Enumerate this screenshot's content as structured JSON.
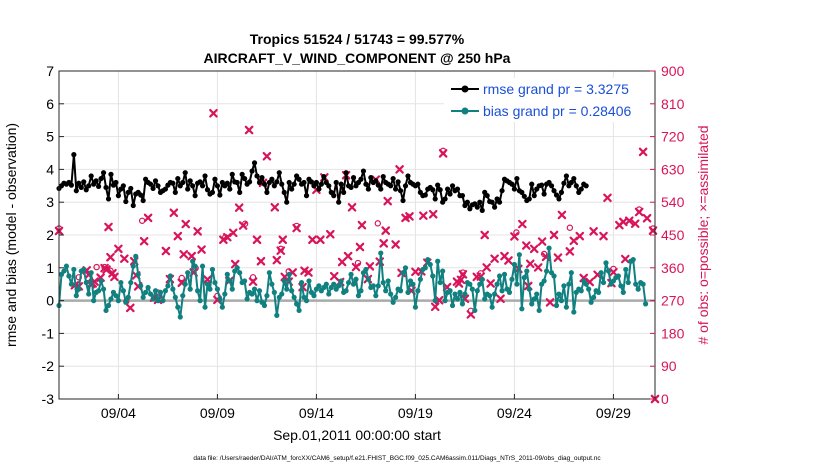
{
  "chart_data": {
    "type": "line",
    "title_line1": "Tropics 51524 / 51743 = 99.577%",
    "title_line2": "AIRCRAFT_V_WIND_COMPONENT @ 250 hPa",
    "xlabel": "Sep.01,2011 00:00:00 start",
    "ylabel_left": "rmse and bias (model - observation)",
    "ylabel_right": "# of obs: o=possible; ×=assimilated",
    "footnote": "data file: /Users/raeder/DAI/ATM_forcXX/CAM6_setup/f.e21.FHIST_BGC.f09_025.CAM6assim.011/Diags_NTrS_2011-09/obs_diag_output.nc",
    "xlim": [
      1.0,
      31.1
    ],
    "ylim_left": [
      -3,
      7
    ],
    "ylim_right": [
      0,
      900
    ],
    "yticks_left": [
      -3,
      -2,
      -1,
      0,
      1,
      2,
      3,
      4,
      5,
      6,
      7
    ],
    "yticks_right": [
      0,
      90,
      180,
      270,
      360,
      450,
      540,
      630,
      720,
      810,
      900
    ],
    "xticks": [
      {
        "value": 4,
        "label": "09/04"
      },
      {
        "value": 9,
        "label": "09/09"
      },
      {
        "value": 14,
        "label": "09/14"
      },
      {
        "value": 19,
        "label": "09/19"
      },
      {
        "value": 24,
        "label": "09/24"
      },
      {
        "value": 29,
        "label": "09/29"
      }
    ],
    "grid": true,
    "legend_position": "top-right",
    "colors": {
      "rmse": "#000000",
      "bias": "#118080",
      "obs": "#d8145a",
      "zero_line": "#aaaaaa",
      "grid": "#e4e4e4",
      "legend_text": "#1a4fd6"
    },
    "series": [
      {
        "name": "rmse grand pr = 3.3275",
        "role": "rmse",
        "axis": "left",
        "x_start": 1.0,
        "x_step": 0.125,
        "values": [
          3.42,
          3.5,
          3.58,
          3.55,
          3.6,
          3.52,
          4.45,
          3.35,
          3.58,
          3.45,
          3.62,
          3.38,
          3.5,
          3.8,
          3.55,
          3.65,
          3.48,
          3.72,
          3.9,
          3.45,
          3.1,
          3.85,
          3.52,
          3.6,
          3.2,
          3.4,
          3.5,
          3.02,
          3.3,
          3.42,
          2.9,
          3.25,
          3.3,
          3.22,
          3.05,
          3.7,
          3.6,
          3.55,
          3.42,
          3.65,
          3.5,
          3.3,
          3.35,
          3.4,
          3.52,
          3.6,
          3.58,
          3.3,
          3.72,
          3.5,
          3.6,
          3.9,
          3.4,
          3.65,
          3.5,
          3.2,
          3.58,
          3.62,
          3.5,
          3.8,
          3.38,
          3.25,
          3.3,
          3.7,
          3.5,
          3.22,
          3.6,
          3.5,
          3.58,
          3.4,
          3.85,
          3.62,
          3.6,
          3.3,
          3.85,
          3.72,
          3.55,
          3.62,
          3.95,
          4.2,
          3.8,
          3.6,
          3.75,
          3.55,
          3.3,
          3.6,
          3.7,
          3.5,
          3.62,
          3.9,
          3.55,
          3.3,
          3.0,
          3.6,
          3.4,
          3.55,
          3.8,
          3.7,
          3.55,
          3.6,
          3.2,
          3.7,
          3.62,
          3.5,
          3.6,
          3.4,
          3.55,
          3.78,
          3.6,
          3.5,
          3.3,
          3.2,
          3.6,
          3.0,
          3.55,
          3.3,
          3.9,
          3.5,
          3.45,
          3.75,
          3.5,
          3.6,
          3.7,
          3.95,
          3.55,
          3.4,
          3.75,
          3.6,
          3.65,
          3.52,
          3.4,
          3.78,
          3.6,
          3.55,
          3.5,
          3.72,
          3.4,
          3.62,
          3.35,
          3.05,
          3.5,
          3.8,
          3.6,
          3.55,
          3.5,
          3.55,
          3.3,
          3.2,
          3.22,
          3.4,
          3.45,
          3.38,
          3.1,
          3.52,
          3.38,
          3.0,
          3.1,
          3.4,
          3.25,
          3.5,
          3.35,
          3.4,
          3.2,
          3.2,
          2.9,
          3.0,
          2.8,
          2.92,
          2.95,
          2.85,
          3.0,
          2.75,
          3.3,
          3.2,
          3.02,
          3.0,
          2.85,
          3.1,
          3.0,
          3.35,
          3.7,
          3.65,
          3.6,
          3.55,
          3.4,
          3.72,
          3.35,
          3.3,
          3.18,
          3.05,
          3.1,
          3.55,
          3.2,
          3.4,
          3.5,
          3.52,
          3.25,
          3.55,
          3.6,
          3.5,
          3.35,
          3.22,
          3.1,
          3.3,
          3.58,
          3.8,
          3.5,
          3.6,
          3.72,
          3.5,
          3.3,
          3.4,
          3.55,
          3.5
        ]
      },
      {
        "name": "bias grand pr = 0.28406",
        "role": "bias",
        "axis": "left",
        "x_start": 1.0,
        "x_step": 0.125,
        "values": [
          -0.15,
          0.8,
          0.9,
          1.05,
          0.75,
          0.5,
          0.95,
          0.15,
          0.35,
          0.9,
          0.95,
          0.55,
          0.2,
          0.85,
          0.0,
          0.25,
          0.3,
          0.6,
          0.35,
          -0.3,
          -0.15,
          0.05,
          0.25,
          0.15,
          0.0,
          0.55,
          0.3,
          -0.05,
          0.1,
          0.55,
          1.05,
          1.35,
          0.8,
          0.45,
          0.1,
          0.25,
          0.4,
          0.2,
          0.05,
          0.3,
          0.0,
          0.25,
          0.0,
          0.3,
          0.45,
          0.75,
          0.35,
          0.1,
          -0.2,
          -0.5,
          0.15,
          0.5,
          0.85,
          0.35,
          1.2,
          1.05,
          0.3,
          0.0,
          1.05,
          -0.2,
          0.5,
          0.35,
          0.95,
          0.55,
          0.35,
          0.05,
          -0.2,
          0.2,
          0.8,
          0.6,
          0.35,
          0.9,
          1.0,
          0.85,
          0.55,
          0.6,
          0.05,
          0.25,
          0.2,
          0.35,
          0.0,
          0.3,
          -0.05,
          -0.15,
          0.15,
          0.85,
          0.5,
          0.25,
          -0.45,
          0.1,
          0.2,
          0.6,
          0.35,
          0.8,
          0.3,
          0.1,
          -0.1,
          -0.3,
          0.55,
          0.1,
          0.0,
          0.6,
          0.25,
          0.15,
          0.35,
          0.45,
          0.3,
          0.4,
          0.5,
          0.2,
          0.4,
          0.5,
          0.35,
          0.45,
          0.6,
          0.25,
          0.3,
          0.55,
          0.8,
          0.5,
          0.65,
          0.15,
          0.3,
          0.85,
          0.95,
          0.65,
          0.4,
          0.45,
          0.15,
          0.45,
          1.45,
          0.55,
          0.3,
          0.6,
          0.2,
          -0.05,
          0.1,
          0.35,
          0.3,
          0.85,
          1.0,
          0.25,
          0.6,
          0.5,
          -0.2,
          0.3,
          0.65,
          0.95,
          1.0,
          1.25,
          1.1,
          0.75,
          0.0,
          1.2,
          0.55,
          0.9,
          0.0,
          0.25,
          0.3,
          -0.15,
          0.2,
          0.05,
          0.25,
          -0.1,
          0.2,
          0.55,
          0.5,
          0.35,
          -0.3,
          0.3,
          0.5,
          0.65,
          0.05,
          0.2,
          0.15,
          -0.2,
          0.2,
          0.5,
          0.75,
          0.3,
          0.8,
          0.35,
          0.25,
          0.65,
          1.1,
          0.5,
          1.4,
          -0.25,
          0.7,
          0.9,
          0.35,
          -0.1,
          0.05,
          0.2,
          -0.3,
          0.5,
          0.6,
          0.9,
          1.6,
          0.85,
          0.75,
          -0.15,
          0.2,
          0.0,
          0.45,
          -0.2,
          0.5,
          0.85,
          -0.35,
          0.25,
          0.35,
          0.3,
          0.6,
          0.5,
          0.35,
          -0.05,
          0.1,
          0.3,
          0.25,
          0.85,
          0.55,
          1.15,
          0.9,
          0.5,
          0.6,
          0.7,
          0.75,
          0.45,
          0.25,
          0.95,
          0.55,
          1.2,
          1.25,
          0.5,
          0.35,
          0.55,
          0.5,
          -0.1
        ]
      }
    ],
    "obs_assimilated_markers": [
      [
        1.0,
        461
      ],
      [
        1.8,
        312
      ],
      [
        2.0,
        309
      ],
      [
        2.4,
        353
      ],
      [
        2.5,
        341
      ],
      [
        2.6,
        315
      ],
      [
        2.7,
        317
      ],
      [
        2.8,
        322
      ],
      [
        3.1,
        333
      ],
      [
        3.3,
        359
      ],
      [
        3.4,
        355
      ],
      [
        3.5,
        472
      ],
      [
        3.6,
        389
      ],
      [
        3.7,
        345
      ],
      [
        3.8,
        335
      ],
      [
        4.0,
        412
      ],
      [
        4.3,
        385
      ],
      [
        4.6,
        250
      ],
      [
        4.8,
        378
      ],
      [
        4.9,
        339
      ],
      [
        5.0,
        309
      ],
      [
        5.3,
        433
      ],
      [
        5.5,
        497
      ],
      [
        5.8,
        278
      ],
      [
        6.0,
        272
      ],
      [
        6.4,
        406
      ],
      [
        6.6,
        329
      ],
      [
        6.8,
        511
      ],
      [
        7.0,
        447
      ],
      [
        7.2,
        319
      ],
      [
        7.3,
        397
      ],
      [
        7.4,
        480
      ],
      [
        7.7,
        392
      ],
      [
        7.8,
        347
      ],
      [
        8.0,
        460
      ],
      [
        8.2,
        410
      ],
      [
        8.5,
        328
      ],
      [
        8.8,
        784
      ],
      [
        9.0,
        272
      ],
      [
        9.3,
        437
      ],
      [
        9.5,
        444
      ],
      [
        9.6,
        324
      ],
      [
        9.8,
        456
      ],
      [
        9.9,
        370
      ],
      [
        10.1,
        525
      ],
      [
        10.3,
        476
      ],
      [
        10.6,
        738
      ],
      [
        10.8,
        322
      ],
      [
        11.0,
        437
      ],
      [
        11.2,
        378
      ],
      [
        11.3,
        593
      ],
      [
        11.5,
        666
      ],
      [
        11.9,
        526
      ],
      [
        12.0,
        381
      ],
      [
        12.2,
        407
      ],
      [
        12.3,
        437
      ],
      [
        12.4,
        335
      ],
      [
        12.6,
        322
      ],
      [
        12.8,
        347
      ],
      [
        13.0,
        469
      ],
      [
        13.3,
        307
      ],
      [
        13.4,
        352
      ],
      [
        13.6,
        347
      ],
      [
        13.8,
        437
      ],
      [
        14.0,
        574
      ],
      [
        14.2,
        437
      ],
      [
        14.4,
        608
      ],
      [
        14.7,
        452
      ],
      [
        14.9,
        337
      ],
      [
        15.2,
        321
      ],
      [
        15.3,
        376
      ],
      [
        15.5,
        614
      ],
      [
        15.6,
        392
      ],
      [
        15.8,
        526
      ],
      [
        16.0,
        362
      ],
      [
        16.2,
        417
      ],
      [
        16.3,
        477
      ],
      [
        16.6,
        329
      ],
      [
        16.7,
        364
      ],
      [
        17.0,
        602
      ],
      [
        17.2,
        377
      ],
      [
        17.4,
        427
      ],
      [
        17.5,
        462
      ],
      [
        17.6,
        543
      ],
      [
        18.0,
        424
      ],
      [
        18.2,
        630
      ],
      [
        18.3,
        346
      ],
      [
        18.5,
        497
      ],
      [
        18.7,
        501
      ],
      [
        18.8,
        297
      ],
      [
        19.0,
        349
      ],
      [
        19.3,
        350
      ],
      [
        19.4,
        503
      ],
      [
        19.6,
        374
      ],
      [
        19.9,
        507
      ],
      [
        20.0,
        253
      ],
      [
        20.2,
        271
      ],
      [
        20.4,
        674
      ],
      [
        20.6,
        307
      ],
      [
        21.1,
        322
      ],
      [
        21.2,
        317
      ],
      [
        21.3,
        327
      ],
      [
        21.4,
        342
      ],
      [
        21.5,
        275
      ],
      [
        21.8,
        232
      ],
      [
        22.1,
        335
      ],
      [
        22.3,
        336
      ],
      [
        22.5,
        450
      ],
      [
        22.6,
        361
      ],
      [
        22.8,
        317
      ],
      [
        23.0,
        385
      ],
      [
        23.3,
        275
      ],
      [
        23.5,
        392
      ],
      [
        23.7,
        380
      ],
      [
        24.0,
        446
      ],
      [
        24.2,
        357
      ],
      [
        24.4,
        480
      ],
      [
        24.6,
        421
      ],
      [
        24.7,
        310
      ],
      [
        24.8,
        371
      ],
      [
        25.0,
        412
      ],
      [
        25.2,
        361
      ],
      [
        25.4,
        432
      ],
      [
        25.6,
        390
      ],
      [
        25.8,
        265
      ],
      [
        26.0,
        450
      ],
      [
        26.2,
        388
      ],
      [
        26.4,
        505
      ],
      [
        26.8,
        405
      ],
      [
        27.0,
        434
      ],
      [
        27.3,
        447
      ],
      [
        27.5,
        332
      ],
      [
        27.8,
        321
      ],
      [
        28.0,
        460
      ],
      [
        28.2,
        341
      ],
      [
        28.5,
        447
      ],
      [
        28.7,
        552
      ],
      [
        28.9,
        318
      ],
      [
        29.0,
        348
      ],
      [
        29.3,
        477
      ],
      [
        29.5,
        486
      ],
      [
        29.6,
        384
      ],
      [
        29.8,
        489
      ],
      [
        30.1,
        481
      ],
      [
        30.3,
        513
      ],
      [
        30.5,
        678
      ],
      [
        30.7,
        496
      ],
      [
        31.0,
        462
      ],
      [
        31.1,
        0
      ]
    ],
    "obs_possible_markers": [
      [
        1.0,
        468
      ],
      [
        2.0,
        334
      ],
      [
        2.9,
        362
      ],
      [
        3.3,
        362
      ],
      [
        3.6,
        352
      ],
      [
        4.4,
        268
      ],
      [
        5.2,
        489
      ],
      [
        6.0,
        292
      ],
      [
        7.2,
        332
      ],
      [
        7.9,
        359
      ],
      [
        9.0,
        283
      ],
      [
        9.4,
        444
      ],
      [
        10.4,
        481
      ],
      [
        10.8,
        334
      ],
      [
        12.2,
        412
      ],
      [
        12.6,
        350
      ],
      [
        13.0,
        475
      ],
      [
        16.1,
        373
      ],
      [
        17.1,
        482
      ],
      [
        18.8,
        303
      ],
      [
        20.4,
        681
      ],
      [
        21.4,
        347
      ],
      [
        21.8,
        242
      ],
      [
        22.3,
        345
      ],
      [
        24.1,
        457
      ],
      [
        25.5,
        398
      ],
      [
        26.8,
        470
      ],
      [
        29.0,
        357
      ],
      [
        30.3,
        520
      ],
      [
        31.0,
        468
      ]
    ]
  }
}
